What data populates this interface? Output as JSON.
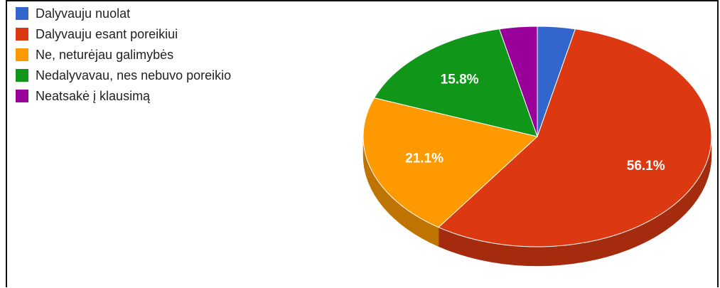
{
  "chart_data": {
    "type": "pie",
    "three_d": true,
    "legend_position": "top-left",
    "start_angle_deg": 0,
    "direction": "clockwise",
    "slices": [
      {
        "label": "Dalyvauju nuolat",
        "value": 3.5,
        "color": "#3366cc",
        "data_label": ""
      },
      {
        "label": "Dalyvauju esant poreikiui",
        "value": 56.1,
        "color": "#dc3912",
        "data_label": "56.1%"
      },
      {
        "label": "Ne, neturėjau galimybės",
        "value": 21.1,
        "color": "#ff9900",
        "data_label": "21.1%"
      },
      {
        "label": "Nedalyvavau, nes nebuvo poreikio",
        "value": 15.8,
        "color": "#109618",
        "data_label": "15.8%"
      },
      {
        "label": "Neatsakė į klausimą",
        "value": 3.5,
        "color": "#990099",
        "data_label": ""
      }
    ]
  }
}
